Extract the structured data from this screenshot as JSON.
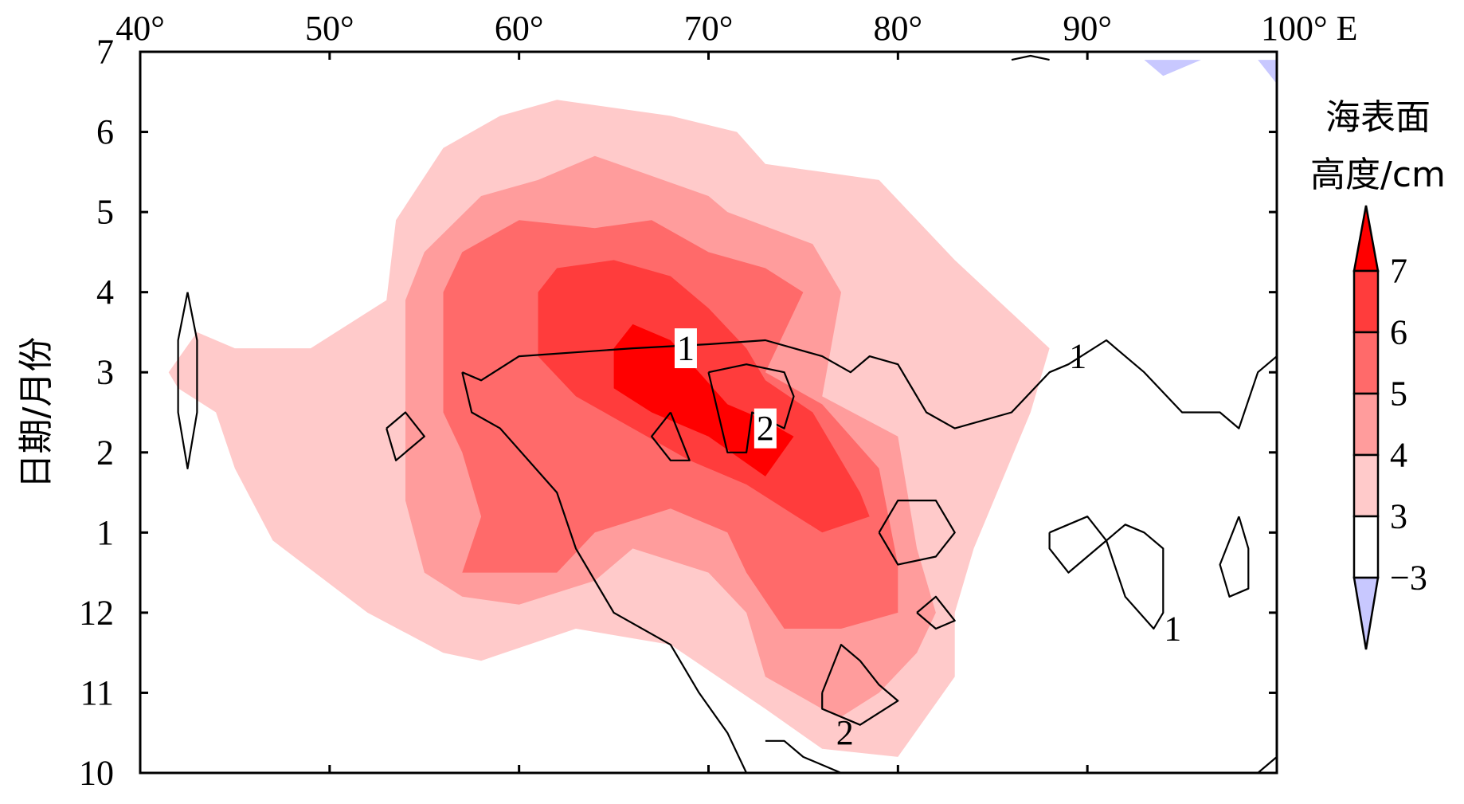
{
  "chart_data": {
    "type": "contour",
    "x_ticks": [
      "40°",
      "50°",
      "60°",
      "70°",
      "80°",
      "90°",
      "100° E"
    ],
    "x_values": [
      40,
      50,
      60,
      70,
      80,
      90,
      100
    ],
    "y_ticks": [
      "10",
      "11",
      "12",
      "1",
      "2",
      "3",
      "4",
      "5",
      "6",
      "7"
    ],
    "y_values": [
      10,
      11,
      12,
      13,
      14,
      15,
      16,
      17,
      18,
      19
    ],
    "xlim": [
      40,
      100
    ],
    "ylim": [
      10,
      19
    ],
    "ylabel": "日期/月份",
    "colorbar": {
      "title_line1": "海表面",
      "title_line2": "高度/cm",
      "levels": [
        "7",
        "6",
        "5",
        "4",
        "3",
        "−3"
      ],
      "colors": [
        "#ff0000",
        "#ff3c3c",
        "#ff6a6a",
        "#ff9c9c",
        "#ffcaca",
        "#ffffff",
        "#c8c8ff"
      ]
    },
    "contour_labels": [
      "1",
      "2",
      "1",
      "1",
      "2"
    ],
    "fill_regions": [
      {
        "level": 3,
        "color": "#ffcaca",
        "points": [
          [
            41.5,
            15.0
          ],
          [
            43,
            15.5
          ],
          [
            45,
            15.3
          ],
          [
            49,
            15.3
          ],
          [
            53,
            15.9
          ],
          [
            53.5,
            16.9
          ],
          [
            56,
            17.8
          ],
          [
            59,
            18.2
          ],
          [
            62,
            18.4
          ],
          [
            68,
            18.2
          ],
          [
            71.5,
            18.0
          ],
          [
            73,
            17.6
          ],
          [
            79,
            17.4
          ],
          [
            83,
            16.4
          ],
          [
            88,
            15.3
          ],
          [
            87,
            14.5
          ],
          [
            84,
            12.8
          ],
          [
            83,
            12.0
          ],
          [
            83,
            11.2
          ],
          [
            80,
            10.2
          ],
          [
            76,
            10.3
          ],
          [
            73,
            10.8
          ],
          [
            68,
            11.6
          ],
          [
            63,
            11.8
          ],
          [
            58,
            11.4
          ],
          [
            56,
            11.5
          ],
          [
            52,
            12.0
          ],
          [
            47,
            12.9
          ],
          [
            45,
            13.8
          ],
          [
            44,
            14.5
          ],
          [
            42,
            14.8
          ]
        ]
      },
      {
        "level": 4,
        "color": "#ff9c9c",
        "points": [
          [
            54,
            15.9
          ],
          [
            55,
            16.5
          ],
          [
            58,
            17.2
          ],
          [
            61,
            17.4
          ],
          [
            64,
            17.7
          ],
          [
            70,
            17.2
          ],
          [
            71,
            17.0
          ],
          [
            75.5,
            16.6
          ],
          [
            77,
            16.0
          ],
          [
            76,
            14.7
          ],
          [
            80,
            14.2
          ],
          [
            81,
            12.8
          ],
          [
            82,
            12.0
          ],
          [
            81,
            11.5
          ],
          [
            79,
            11.0
          ],
          [
            77,
            10.7
          ],
          [
            76,
            10.8
          ],
          [
            73,
            11.2
          ],
          [
            72,
            12.0
          ],
          [
            70,
            12.5
          ],
          [
            66,
            12.8
          ],
          [
            64,
            12.4
          ],
          [
            60,
            12.1
          ],
          [
            57,
            12.2
          ],
          [
            55,
            12.5
          ],
          [
            54,
            13.4
          ],
          [
            54,
            14.8
          ]
        ]
      },
      {
        "level": 5,
        "color": "#ff6a6a",
        "points": [
          [
            56,
            16.0
          ],
          [
            57,
            16.5
          ],
          [
            60,
            16.9
          ],
          [
            64,
            16.8
          ],
          [
            67,
            16.9
          ],
          [
            70,
            16.5
          ],
          [
            73,
            16.3
          ],
          [
            75,
            16.0
          ],
          [
            73,
            15.0
          ],
          [
            76,
            14.6
          ],
          [
            79,
            13.8
          ],
          [
            80,
            12.6
          ],
          [
            80,
            12.0
          ],
          [
            77,
            11.8
          ],
          [
            74,
            11.8
          ],
          [
            72,
            12.5
          ],
          [
            71,
            13.0
          ],
          [
            68,
            13.3
          ],
          [
            64,
            13.0
          ],
          [
            62,
            12.5
          ],
          [
            57,
            12.5
          ],
          [
            58,
            13.2
          ],
          [
            57,
            14.0
          ],
          [
            56,
            14.5
          ]
        ]
      },
      {
        "level": 6,
        "color": "#ff3c3c",
        "points": [
          [
            61,
            16.0
          ],
          [
            62,
            16.3
          ],
          [
            65,
            16.4
          ],
          [
            68,
            16.2
          ],
          [
            70,
            15.8
          ],
          [
            72,
            15.3
          ],
          [
            73,
            14.9
          ],
          [
            75.5,
            14.5
          ],
          [
            78,
            13.5
          ],
          [
            78.5,
            13.2
          ],
          [
            76,
            13.0
          ],
          [
            74,
            13.3
          ],
          [
            72,
            13.6
          ],
          [
            69,
            13.9
          ],
          [
            66,
            14.3
          ],
          [
            63,
            14.7
          ],
          [
            61,
            15.2
          ]
        ]
      },
      {
        "level": 7,
        "color": "#ff0000",
        "points": [
          [
            65,
            15.3
          ],
          [
            66,
            15.6
          ],
          [
            68,
            15.4
          ],
          [
            69.5,
            15.0
          ],
          [
            71,
            14.6
          ],
          [
            73,
            14.4
          ],
          [
            74.5,
            14.2
          ],
          [
            73,
            13.7
          ],
          [
            70,
            14.2
          ],
          [
            67,
            14.5
          ],
          [
            65,
            14.8
          ]
        ]
      },
      {
        "level": -3,
        "color": "#c8c8ff",
        "points": [
          [
            93,
            18.9
          ],
          [
            94,
            18.7
          ],
          [
            96,
            18.9
          ]
        ]
      },
      {
        "level": -3,
        "color": "#c8c8ff",
        "points": [
          [
            99,
            18.9
          ],
          [
            100,
            18.6
          ],
          [
            100,
            18.9
          ]
        ]
      }
    ],
    "contour_lines": [
      {
        "name": "1",
        "points": [
          [
            57,
            15.0
          ],
          [
            58,
            14.9
          ],
          [
            60,
            15.2
          ],
          [
            66,
            15.3
          ],
          [
            70,
            15.35
          ],
          [
            73,
            15.4
          ],
          [
            76,
            15.2
          ],
          [
            77.5,
            15.0
          ],
          [
            78.5,
            15.2
          ],
          [
            80,
            15.1
          ],
          [
            81.5,
            14.5
          ],
          [
            83,
            14.3
          ],
          [
            86,
            14.5
          ],
          [
            88,
            15.0
          ],
          [
            89,
            15.1
          ],
          [
            91,
            15.4
          ],
          [
            93,
            15.0
          ],
          [
            95,
            14.5
          ],
          [
            97,
            14.5
          ],
          [
            98,
            14.3
          ],
          [
            99,
            15.0
          ],
          [
            100,
            15.2
          ]
        ]
      },
      {
        "name": "1",
        "points": [
          [
            57,
            15.0
          ],
          [
            57.5,
            14.5
          ],
          [
            59,
            14.3
          ],
          [
            62,
            13.5
          ],
          [
            63,
            12.8
          ],
          [
            65,
            12.0
          ],
          [
            68,
            11.6
          ],
          [
            69.5,
            11.0
          ],
          [
            71,
            10.5
          ],
          [
            72,
            10.0
          ]
        ]
      },
      {
        "name": "2",
        "points": [
          [
            70,
            15.0
          ],
          [
            72,
            15.1
          ],
          [
            74,
            15.0
          ],
          [
            74.5,
            14.7
          ],
          [
            74,
            14.3
          ],
          [
            72.3,
            14.5
          ],
          [
            72,
            14.0
          ],
          [
            71,
            14.0
          ],
          [
            70.5,
            14.5
          ],
          [
            70,
            15.0
          ]
        ]
      },
      {
        "name": "loop",
        "points": [
          [
            68,
            14.5
          ],
          [
            68.5,
            14.2
          ],
          [
            69,
            13.9
          ],
          [
            68,
            13.9
          ],
          [
            67,
            14.2
          ],
          [
            68,
            14.5
          ]
        ]
      },
      {
        "name": "loop",
        "points": [
          [
            42.5,
            16.0
          ],
          [
            43,
            15.4
          ],
          [
            43,
            14.5
          ],
          [
            42.5,
            13.8
          ],
          [
            42,
            14.5
          ],
          [
            42,
            15.4
          ],
          [
            42.5,
            16.0
          ]
        ]
      },
      {
        "name": "loop",
        "points": [
          [
            53,
            14.3
          ],
          [
            54,
            14.5
          ],
          [
            55,
            14.2
          ],
          [
            53.5,
            13.9
          ],
          [
            53,
            14.3
          ]
        ]
      },
      {
        "name": "loop",
        "points": [
          [
            79,
            13.0
          ],
          [
            80,
            13.4
          ],
          [
            82,
            13.4
          ],
          [
            83,
            13.0
          ],
          [
            82,
            12.7
          ],
          [
            80,
            12.6
          ],
          [
            79,
            13.0
          ]
        ]
      },
      {
        "name": "loop",
        "points": [
          [
            81,
            12.0
          ],
          [
            82,
            12.2
          ],
          [
            83,
            11.9
          ],
          [
            82,
            11.8
          ],
          [
            81,
            12.0
          ]
        ]
      },
      {
        "name": "2",
        "points": [
          [
            76,
            11.0
          ],
          [
            77,
            11.6
          ],
          [
            78,
            11.4
          ],
          [
            79,
            11.1
          ],
          [
            80,
            10.9
          ],
          [
            78,
            10.6
          ],
          [
            76,
            10.8
          ],
          [
            76,
            11.0
          ]
        ]
      },
      {
        "name": "loop",
        "points": [
          [
            73,
            10.4
          ],
          [
            74,
            10.4
          ],
          [
            75,
            10.2
          ],
          [
            77,
            10.0
          ],
          [
            73,
            10.0
          ]
        ]
      },
      {
        "name": "loop",
        "points": [
          [
            88,
            13.0
          ],
          [
            90,
            13.2
          ],
          [
            91,
            12.9
          ],
          [
            89,
            12.5
          ],
          [
            88,
            12.8
          ],
          [
            88,
            13.0
          ]
        ]
      },
      {
        "name": "1",
        "points": [
          [
            91,
            12.9
          ],
          [
            92,
            13.1
          ],
          [
            93,
            13.0
          ],
          [
            94,
            12.8
          ],
          [
            94,
            12.0
          ],
          [
            93.5,
            11.8
          ],
          [
            92,
            12.2
          ],
          [
            91,
            12.9
          ]
        ]
      },
      {
        "name": "loop",
        "points": [
          [
            98,
            13.2
          ],
          [
            98.5,
            12.8
          ],
          [
            98.5,
            12.3
          ],
          [
            97.5,
            12.2
          ],
          [
            97,
            12.6
          ],
          [
            98,
            13.2
          ]
        ]
      },
      {
        "name": "loop",
        "points": [
          [
            86,
            18.9
          ],
          [
            87,
            18.95
          ],
          [
            88,
            18.9
          ]
        ]
      },
      {
        "name": "loop",
        "points": [
          [
            99,
            10.0
          ],
          [
            100,
            10.2
          ]
        ]
      }
    ],
    "label_positions_data": [
      {
        "text": "1",
        "x": 68.8,
        "y": 15.3,
        "boxed": true
      },
      {
        "text": "2",
        "x": 73.0,
        "y": 14.3,
        "boxed": true
      },
      {
        "text": "1",
        "x": 89.5,
        "y": 15.2,
        "boxed": false
      },
      {
        "text": "1",
        "x": 94.5,
        "y": 11.8,
        "boxed": false
      },
      {
        "text": "2",
        "x": 77.2,
        "y": 10.5,
        "boxed": false
      }
    ]
  }
}
